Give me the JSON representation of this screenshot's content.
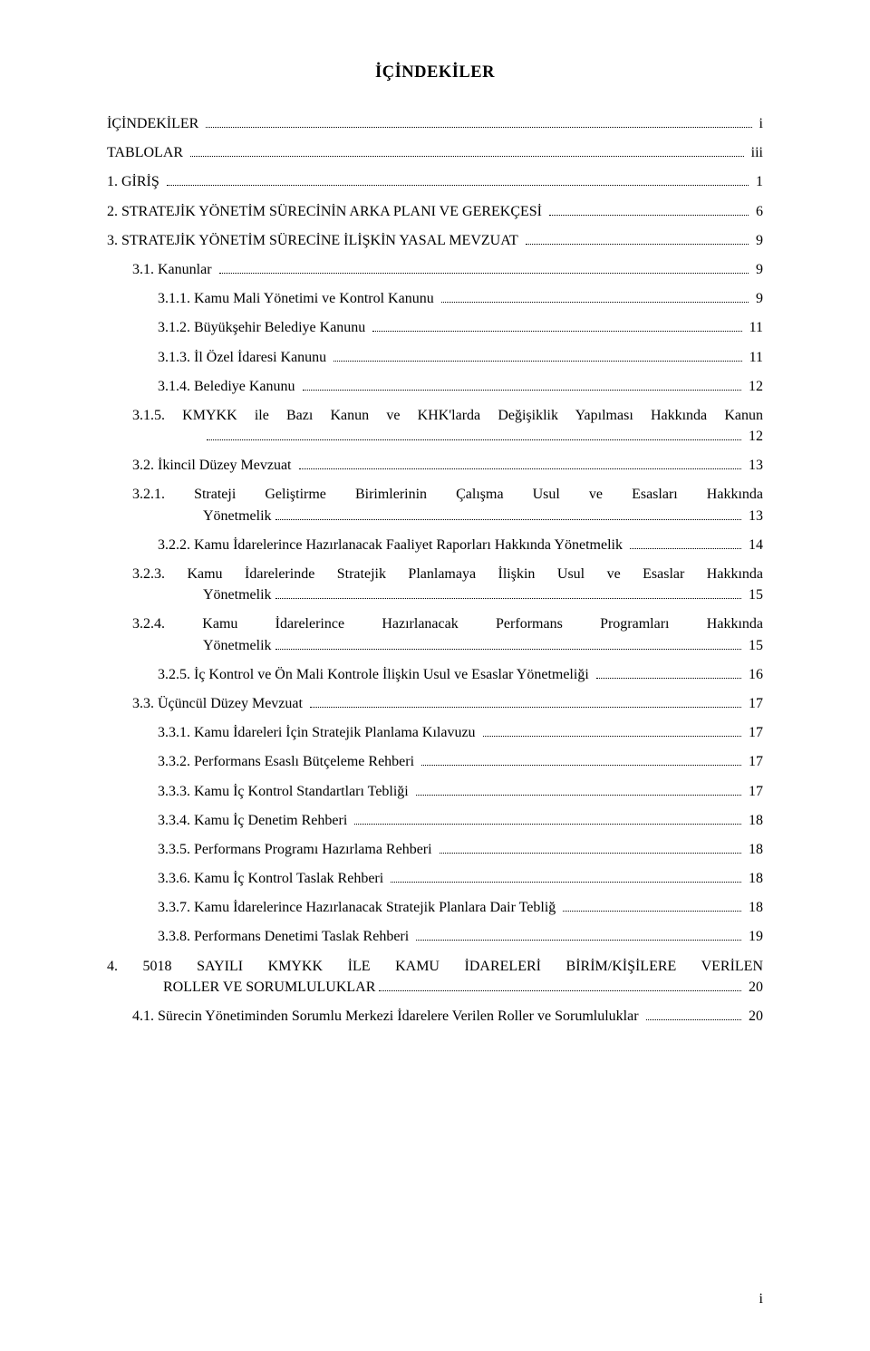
{
  "title": "İÇİNDEKİLER",
  "footer_page": "i",
  "toc": [
    {
      "type": "line",
      "level": 0,
      "label": "İÇİNDEKİLER",
      "page": "i"
    },
    {
      "type": "line",
      "level": 0,
      "label": "TABLOLAR",
      "page": "iii"
    },
    {
      "type": "line",
      "level": 0,
      "label": "1. GİRİŞ",
      "page": "1"
    },
    {
      "type": "line",
      "level": 0,
      "label": "2. STRATEJİK YÖNETİM SÜRECİNİN ARKA PLANI VE GEREKÇESİ",
      "page": "6"
    },
    {
      "type": "line",
      "level": 0,
      "label": "3. STRATEJİK YÖNETİM SÜRECİNE İLİŞKİN YASAL MEVZUAT",
      "page": "9"
    },
    {
      "type": "line",
      "level": 1,
      "label": "3.1. Kanunlar",
      "page": "9"
    },
    {
      "type": "line",
      "level": 2,
      "label": "3.1.1. Kamu Mali Yönetimi ve Kontrol Kanunu",
      "page": "9"
    },
    {
      "type": "line",
      "level": 2,
      "label": "3.1.2. Büyükşehir Belediye Kanunu",
      "page": "11"
    },
    {
      "type": "line",
      "level": 2,
      "label": "3.1.3. İl Özel İdaresi Kanunu",
      "page": "11"
    },
    {
      "type": "line",
      "level": 2,
      "label": "3.1.4. Belediye Kanunu",
      "page": "12"
    },
    {
      "type": "wrap",
      "level": 2,
      "hang": "hang-2",
      "line1": "3.1.5. KMYKK ile Bazı Kanun ve KHK'larda Değişiklik Yapılması Hakkında Kanun",
      "line2": "",
      "page": "12"
    },
    {
      "type": "line",
      "level": 1,
      "label": "3.2. İkincil Düzey Mevzuat",
      "page": "13"
    },
    {
      "type": "wrap",
      "level": 2,
      "hang": "hang-2",
      "line1": "3.2.1. Strateji Geliştirme Birimlerinin Çalışma Usul ve Esasları Hakkında",
      "line2": "Yönetmelik",
      "page": "13"
    },
    {
      "type": "line",
      "level": 2,
      "label": "3.2.2. Kamu İdarelerince Hazırlanacak Faaliyet Raporları Hakkında Yönetmelik",
      "page": "14"
    },
    {
      "type": "wrap",
      "level": 2,
      "hang": "hang-2",
      "line1": "3.2.3. Kamu İdarelerinde Stratejik Planlamaya İlişkin Usul ve Esaslar Hakkında",
      "line2": "Yönetmelik",
      "page": "15"
    },
    {
      "type": "wrap",
      "level": 2,
      "hang": "hang-2",
      "line1": "3.2.4. Kamu İdarelerince Hazırlanacak Performans Programları Hakkında",
      "line2": "Yönetmelik",
      "page": "15"
    },
    {
      "type": "line",
      "level": 2,
      "label": "3.2.5. İç Kontrol ve Ön Mali Kontrole İlişkin Usul ve Esaslar  Yönetmeliği",
      "page": "16"
    },
    {
      "type": "line",
      "level": 1,
      "label": "3.3. Üçüncül Düzey Mevzuat",
      "page": "17"
    },
    {
      "type": "line",
      "level": 2,
      "label": "3.3.1. Kamu İdareleri İçin Stratejik Planlama Kılavuzu",
      "page": "17"
    },
    {
      "type": "line",
      "level": 2,
      "label": "3.3.2. Performans Esaslı Bütçeleme Rehberi",
      "page": "17"
    },
    {
      "type": "line",
      "level": 2,
      "label": "3.3.3. Kamu İç Kontrol Standartları Tebliği",
      "page": "17"
    },
    {
      "type": "line",
      "level": 2,
      "label": "3.3.4. Kamu İç Denetim Rehberi",
      "page": "18"
    },
    {
      "type": "line",
      "level": 2,
      "label": "3.3.5. Performans Programı Hazırlama Rehberi",
      "page": "18"
    },
    {
      "type": "line",
      "level": 2,
      "label": "3.3.6. Kamu İç Kontrol Taslak Rehberi",
      "page": "18"
    },
    {
      "type": "line",
      "level": 2,
      "label": "3.3.7. Kamu İdarelerince Hazırlanacak Stratejik Planlara Dair Tebliğ",
      "page": "18"
    },
    {
      "type": "line",
      "level": 2,
      "label": "3.3.8. Performans Denetimi Taslak Rehberi",
      "page": "19"
    },
    {
      "type": "wrap",
      "level": 0,
      "hang": "hang-1",
      "line1": "4. 5018 SAYILI KMYKK İLE KAMU İDARELERİ BİRİM/KİŞİLERE VERİLEN",
      "line2": "ROLLER VE SORUMLULUKLAR",
      "page": "20"
    },
    {
      "type": "line",
      "level": 1,
      "label": "4.1. Sürecin Yönetiminden Sorumlu Merkezi İdarelere Verilen Roller ve Sorumluluklar",
      "page": "20"
    }
  ]
}
